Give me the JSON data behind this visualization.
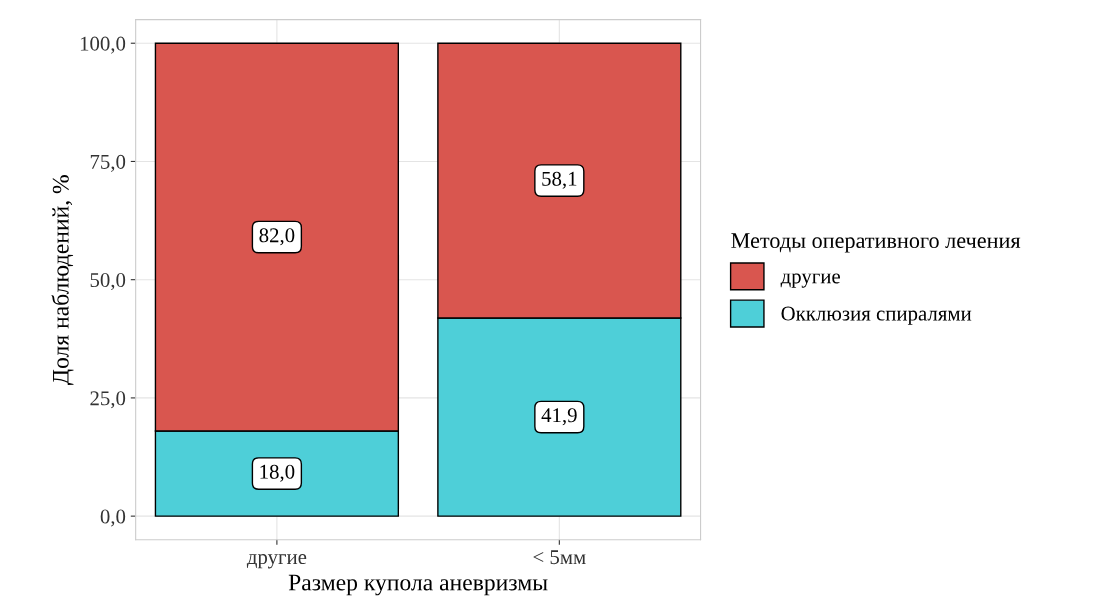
{
  "chart_data": {
    "type": "bar",
    "stacked": true,
    "categories": [
      "другие",
      "< 5мм"
    ],
    "series": [
      {
        "name": "Окклюзия спиралями",
        "color": "#4ecfd8",
        "values": [
          18.0,
          41.9
        ],
        "value_labels": [
          "18,0",
          "41,9"
        ]
      },
      {
        "name": "другие",
        "color": "#d9564f",
        "values": [
          82.0,
          58.1
        ],
        "value_labels": [
          "82,0",
          "58,1"
        ]
      }
    ],
    "xlabel": "Размер купола аневризмы",
    "ylabel": "Доля наблюдений, %",
    "legend_title": "Методы оперативного лечения",
    "ylim": [
      -5,
      105
    ],
    "yticks": [
      {
        "value": 0,
        "label": "0,0"
      },
      {
        "value": 25,
        "label": "25,0"
      },
      {
        "value": 50,
        "label": "50,0"
      },
      {
        "value": 75,
        "label": "75,0"
      },
      {
        "value": 100,
        "label": "100,0"
      }
    ],
    "grid": true,
    "legend": "right"
  }
}
